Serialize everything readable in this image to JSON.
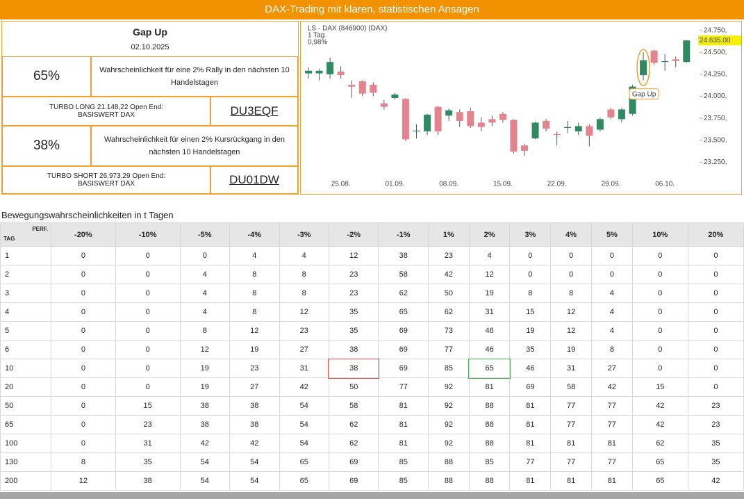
{
  "header": {
    "title": "DAX-Trading mit klaren, statistischen Ansagen"
  },
  "panel": {
    "title": "Gap Up",
    "date": "02.10.2025",
    "long": {
      "percent": "65%",
      "text": "Wahrscheinlichkeit für eine 2% Rally in den nächsten 10 Handelstagen",
      "product": "TURBO LONG 21.148,22 Open End:",
      "underlying": "BASISWERT DAX",
      "code": "DU3EQF"
    },
    "short": {
      "percent": "38%",
      "text": "Wahrscheinlichkeit für einen 2% Kursrückgang in den nächsten 10 Handelstagen",
      "product": "TURBO SHORT 26.973,29 Open End:",
      "underlying": "BASISWERT DAX",
      "code": "DU01DW"
    }
  },
  "chart_data": {
    "type": "candlestick",
    "legend": [
      "LS - DAX (846900) (DAX)",
      "1 Tag",
      "0,98%"
    ],
    "categories": [
      null,
      null,
      null,
      "25.08.",
      null,
      null,
      null,
      null,
      "01.09.",
      null,
      null,
      null,
      null,
      "08.09.",
      null,
      null,
      null,
      null,
      "15.09.",
      null,
      null,
      null,
      null,
      "22.09.",
      null,
      null,
      null,
      null,
      "29.09.",
      null,
      null,
      null,
      null,
      "06.10.",
      null,
      null
    ],
    "open": [
      24260,
      24260,
      24250,
      24280,
      24130,
      24170,
      24130,
      23920,
      23980,
      23970,
      23600,
      23600,
      23880,
      23780,
      23820,
      23830,
      23700,
      23740,
      23800,
      23730,
      23440,
      23520,
      23720,
      23570,
      23640,
      23600,
      23660,
      23620,
      23850,
      23740,
      23800,
      24240,
      24520,
      24390,
      24420,
      24390
    ],
    "high": [
      24330,
      24310,
      24440,
      24340,
      24180,
      24180,
      24160,
      23960,
      24040,
      23980,
      23680,
      23800,
      23890,
      23860,
      23850,
      23870,
      23760,
      23780,
      23820,
      23740,
      23460,
      23710,
      23740,
      23600,
      23720,
      23700,
      23680,
      23760,
      23870,
      23870,
      24130,
      24500,
      24530,
      24480,
      24450,
      24640
    ],
    "low": [
      24200,
      24180,
      24200,
      24200,
      23980,
      24000,
      24000,
      23850,
      23960,
      23490,
      23520,
      23560,
      23560,
      23720,
      23650,
      23640,
      23600,
      23660,
      23700,
      23350,
      23320,
      23510,
      23600,
      23440,
      23580,
      23560,
      23430,
      23600,
      23740,
      23700,
      23780,
      24180,
      24360,
      24290,
      24330,
      24380
    ],
    "close": [
      24290,
      24290,
      24390,
      24240,
      24110,
      24030,
      24040,
      23880,
      24020,
      23510,
      23610,
      23790,
      23600,
      23840,
      23720,
      23660,
      23650,
      23700,
      23730,
      23370,
      23380,
      23700,
      23630,
      23560,
      23650,
      23660,
      23550,
      23740,
      23760,
      23850,
      24110,
      24410,
      24380,
      24400,
      24400,
      24635
    ],
    "last_label": "24.635,00",
    "annotation": "Gap Up",
    "up_color": "#2f8a62",
    "down_color": "#e3838d",
    "ylim": [
      23150,
      24850
    ],
    "yticks": [
      {
        "value": 23250,
        "label": "23.250,"
      },
      {
        "value": 23500,
        "label": "23.500,"
      },
      {
        "value": 23750,
        "label": "23.750,"
      },
      {
        "value": 24000,
        "label": "24.000,"
      },
      {
        "value": 24250,
        "label": "24.250,"
      },
      {
        "value": 24500,
        "label": "24.500,"
      },
      {
        "value": 24750,
        "label": "24.750,"
      }
    ]
  },
  "table": {
    "title": "Bewegungswahrscheinlichkeiten in t Tagen",
    "row_head": "TAG",
    "col_head": "PERF.",
    "columns": [
      "-20%",
      "-10%",
      "-5%",
      "-4%",
      "-3%",
      "-2%",
      "-1%",
      "1%",
      "2%",
      "3%",
      "4%",
      "5%",
      "10%",
      "20%"
    ],
    "rows": [
      [
        1,
        0,
        0,
        0,
        4,
        4,
        12,
        38,
        23,
        4,
        0,
        0,
        0,
        0,
        0
      ],
      [
        2,
        0,
        0,
        4,
        8,
        8,
        23,
        58,
        42,
        12,
        0,
        0,
        0,
        0,
        0
      ],
      [
        3,
        0,
        0,
        4,
        8,
        8,
        23,
        62,
        50,
        19,
        8,
        8,
        4,
        0,
        0
      ],
      [
        4,
        0,
        0,
        4,
        8,
        12,
        35,
        65,
        62,
        31,
        15,
        12,
        4,
        0,
        0
      ],
      [
        5,
        0,
        0,
        8,
        12,
        23,
        35,
        69,
        73,
        46,
        19,
        12,
        4,
        0,
        0
      ],
      [
        6,
        0,
        0,
        12,
        19,
        27,
        38,
        69,
        77,
        46,
        35,
        19,
        8,
        0,
        0
      ],
      [
        10,
        0,
        0,
        19,
        23,
        31,
        38,
        69,
        85,
        65,
        46,
        31,
        27,
        0,
        0
      ],
      [
        20,
        0,
        0,
        19,
        27,
        42,
        50,
        77,
        92,
        81,
        69,
        58,
        42,
        15,
        0
      ],
      [
        50,
        0,
        15,
        38,
        38,
        54,
        58,
        81,
        92,
        88,
        81,
        77,
        77,
        42,
        23
      ],
      [
        65,
        0,
        23,
        38,
        38,
        54,
        62,
        81,
        92,
        88,
        81,
        77,
        77,
        42,
        23
      ],
      [
        100,
        0,
        31,
        42,
        42,
        54,
        62,
        81,
        92,
        88,
        81,
        81,
        81,
        62,
        35
      ],
      [
        130,
        8,
        35,
        54,
        54,
        65,
        69,
        85,
        88,
        85,
        77,
        77,
        77,
        65,
        35
      ],
      [
        200,
        12,
        38,
        54,
        54,
        65,
        69,
        85,
        88,
        88,
        81,
        81,
        81,
        65,
        42
      ]
    ]
  }
}
